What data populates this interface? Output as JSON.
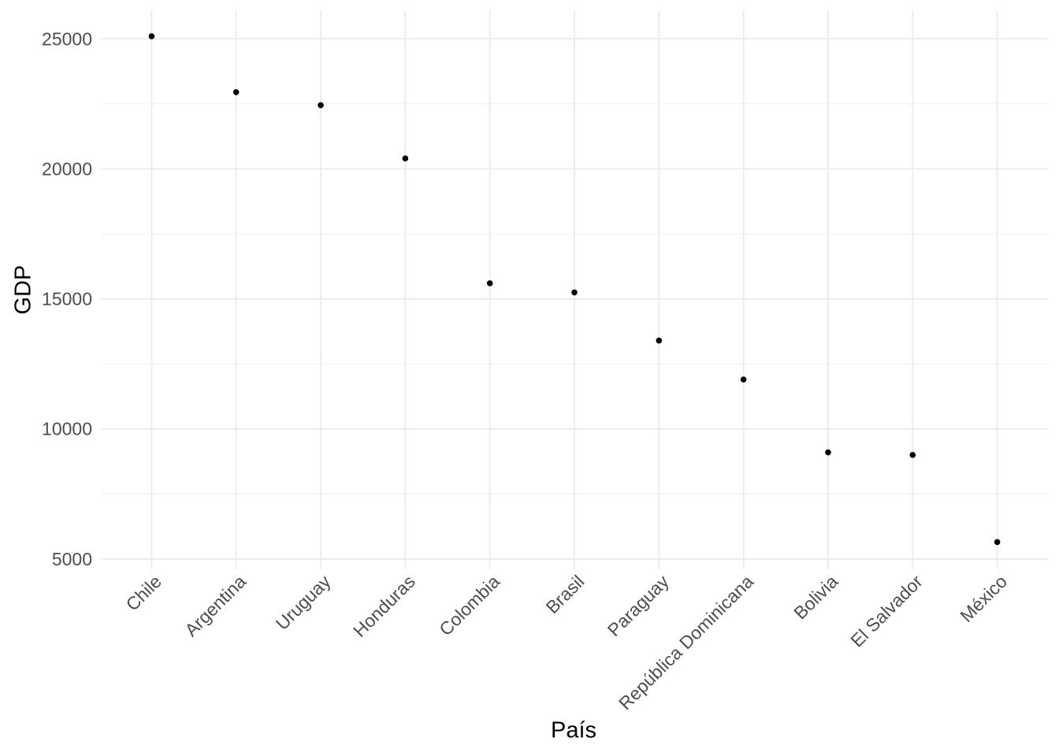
{
  "figure": {
    "background_color": "#FFFFFF"
  },
  "chart_data": {
    "type": "scatter",
    "title": "",
    "xlabel": "País",
    "ylabel": "GDP",
    "legend_position": "none",
    "grid": "on",
    "x_tick_angle_deg": 45,
    "categories": [
      "Chile",
      "Argentina",
      "Uruguay",
      "Honduras",
      "Colombia",
      "Brasil",
      "Paraguay",
      "República Dominicana",
      "Bolivia",
      "El Salvador",
      "México"
    ],
    "values": [
      25100,
      22950,
      22450,
      20400,
      15600,
      15250,
      13400,
      11900,
      9100,
      9000,
      5650
    ],
    "y_ticks": [
      5000,
      10000,
      15000,
      20000,
      25000
    ],
    "y_minor_gridlines": [
      7500,
      12500,
      17500,
      22500
    ],
    "ylim": [
      4600,
      26100
    ],
    "style": {
      "point_color": "#000000",
      "point_radius_px": 3.8,
      "grid_major_color": "#EBEBEB",
      "grid_minor_color": "#F1F1F1",
      "tick_label_color": "#4D4D4D",
      "axis_title_color": "#000000",
      "tick_font_px": 23
    }
  }
}
